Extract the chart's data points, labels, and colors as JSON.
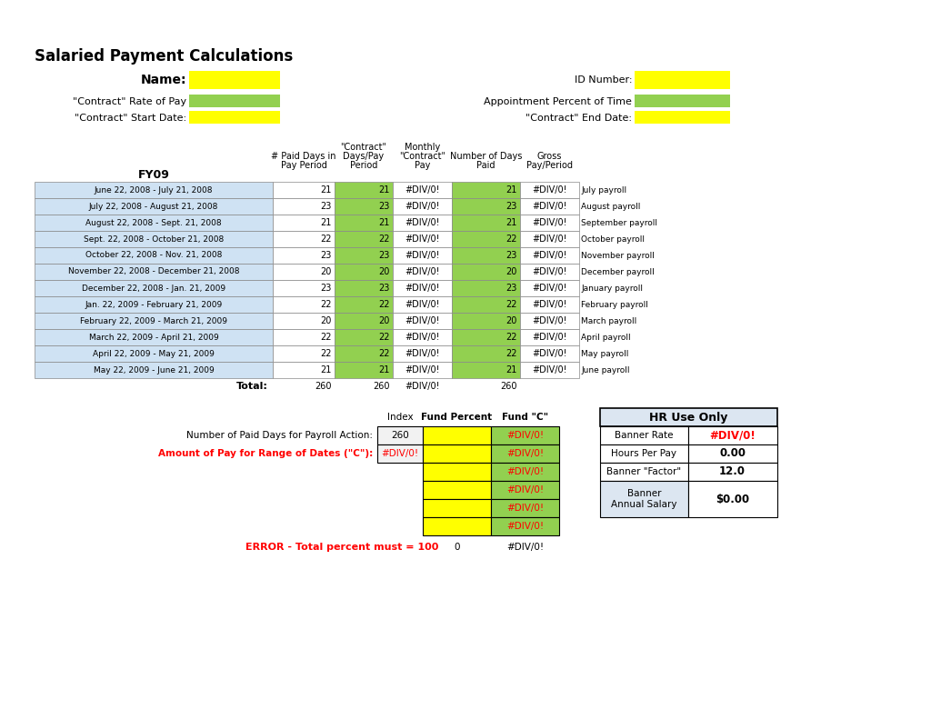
{
  "title": "Salaried Payment Calculations",
  "bg_color": "#ffffff",
  "yellow": "#ffff00",
  "green": "#92d050",
  "light_blue": "#cfe2f3",
  "light_blue2": "#dce6f1",
  "red_text": "#ff0000",
  "data_rows": [
    {
      "period": "June 22, 2008 - July 21, 2008",
      "paid_days": 21,
      "contract_days": 21,
      "monthly_pay": "#DIV/0!",
      "num_days": 21,
      "gross": "#DIV/0!",
      "payroll": "July payroll"
    },
    {
      "period": "July 22, 2008 - August 21, 2008",
      "paid_days": 23,
      "contract_days": 23,
      "monthly_pay": "#DIV/0!",
      "num_days": 23,
      "gross": "#DIV/0!",
      "payroll": "August payroll"
    },
    {
      "period": "August 22, 2008 - Sept. 21, 2008",
      "paid_days": 21,
      "contract_days": 21,
      "monthly_pay": "#DIV/0!",
      "num_days": 21,
      "gross": "#DIV/0!",
      "payroll": "September payroll"
    },
    {
      "period": "Sept. 22, 2008 - October 21, 2008",
      "paid_days": 22,
      "contract_days": 22,
      "monthly_pay": "#DIV/0!",
      "num_days": 22,
      "gross": "#DIV/0!",
      "payroll": "October payroll"
    },
    {
      "period": "October 22, 2008 - Nov. 21, 2008",
      "paid_days": 23,
      "contract_days": 23,
      "monthly_pay": "#DIV/0!",
      "num_days": 23,
      "gross": "#DIV/0!",
      "payroll": "November payroll"
    },
    {
      "period": "November 22, 2008 - December 21, 2008",
      "paid_days": 20,
      "contract_days": 20,
      "monthly_pay": "#DIV/0!",
      "num_days": 20,
      "gross": "#DIV/0!",
      "payroll": "December payroll"
    },
    {
      "period": "December 22, 2008 - Jan. 21, 2009",
      "paid_days": 23,
      "contract_days": 23,
      "monthly_pay": "#DIV/0!",
      "num_days": 23,
      "gross": "#DIV/0!",
      "payroll": "January payroll"
    },
    {
      "period": "Jan. 22, 2009 - February 21, 2009",
      "paid_days": 22,
      "contract_days": 22,
      "monthly_pay": "#DIV/0!",
      "num_days": 22,
      "gross": "#DIV/0!",
      "payroll": "February payroll"
    },
    {
      "period": "February 22, 2009 - March 21, 2009",
      "paid_days": 20,
      "contract_days": 20,
      "monthly_pay": "#DIV/0!",
      "num_days": 20,
      "gross": "#DIV/0!",
      "payroll": "March payroll"
    },
    {
      "period": "March 22, 2009 - April 21, 2009",
      "paid_days": 22,
      "contract_days": 22,
      "monthly_pay": "#DIV/0!",
      "num_days": 22,
      "gross": "#DIV/0!",
      "payroll": "April payroll"
    },
    {
      "period": "April 22, 2009 - May 21, 2009",
      "paid_days": 22,
      "contract_days": 22,
      "monthly_pay": "#DIV/0!",
      "num_days": 22,
      "gross": "#DIV/0!",
      "payroll": "May payroll"
    },
    {
      "period": "May 22, 2009 - June 21, 2009",
      "paid_days": 21,
      "contract_days": 21,
      "monthly_pay": "#DIV/0!",
      "num_days": 21,
      "gross": "#DIV/0!",
      "payroll": "June payroll"
    }
  ],
  "total_paid": 260,
  "total_contract": 260,
  "total_monthly": "#DIV/0!",
  "total_num": 260,
  "bs_num_paid_label": "Number of Paid Days for Payroll Action:",
  "bs_num_paid_value": "260",
  "bs_amount_label": "Amount of Pay for Range of Dates (\"C\"):",
  "bs_amount_value": "#DIV/0!",
  "bs_fund_c": [
    "#DIV/0!",
    "#DIV/0!",
    "#DIV/0!",
    "#DIV/0!",
    "#DIV/0!",
    "#DIV/0!"
  ],
  "banner_rate_label": "Banner Rate",
  "banner_rate_value": "#DIV/0!",
  "hours_per_pay_label": "Hours Per Pay",
  "hours_per_pay_value": "0.00",
  "banner_factor_label": "Banner \"Factor\"",
  "banner_factor_value": "12.0",
  "banner_annual_label": "Banner\nAnnual Salary",
  "banner_annual_value": "$0.00",
  "error_label": "ERROR - Total percent must = 100",
  "error_zero": "0",
  "error_div": "#DIV/0!"
}
